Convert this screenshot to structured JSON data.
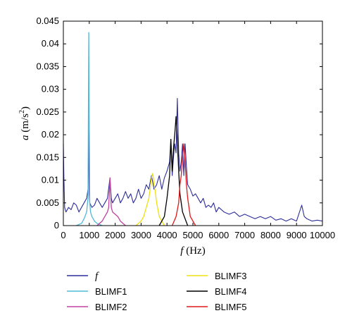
{
  "chart_data": {
    "type": "line",
    "xlabel_var": "f",
    "xlabel_unit": "(Hz)",
    "ylabel_var": "a",
    "ylabel_unit_pre": "(m/s",
    "ylabel_unit_sup": "2",
    "ylabel_unit_post": ")",
    "xlim": [
      0,
      10000
    ],
    "ylim": [
      0,
      0.045
    ],
    "x_ticks": [
      0,
      1000,
      2000,
      3000,
      4000,
      5000,
      6000,
      7000,
      8000,
      9000,
      10000
    ],
    "x_tick_labels": [
      "0",
      "1000",
      "2000",
      "3000",
      "4000",
      "5000",
      "6000",
      "7000",
      "8000",
      "9000",
      "10000"
    ],
    "y_ticks": [
      0,
      0.005,
      0.01,
      0.015,
      0.02,
      0.025,
      0.03,
      0.035,
      0.04,
      0.045
    ],
    "y_tick_labels": [
      "0",
      "0.005",
      "0.01",
      "0.015",
      "0.02",
      "0.025",
      "0.03",
      "0.035",
      "0.04",
      "0.045"
    ],
    "grid": false,
    "legend_placement": "below plot, two columns",
    "series": [
      {
        "name": "f",
        "color": "#2e2e9a",
        "x": [
          0,
          20,
          50,
          100,
          200,
          300,
          400,
          500,
          600,
          700,
          800,
          900,
          950,
          980,
          1000,
          1020,
          1100,
          1200,
          1300,
          1400,
          1500,
          1600,
          1700,
          1800,
          1850,
          1900,
          2000,
          2100,
          2200,
          2300,
          2400,
          2500,
          2600,
          2700,
          2800,
          2900,
          3000,
          3100,
          3200,
          3300,
          3400,
          3450,
          3500,
          3600,
          3700,
          3800,
          3900,
          4000,
          4100,
          4150,
          4200,
          4250,
          4300,
          4350,
          4400,
          4450,
          4500,
          4550,
          4600,
          4650,
          4700,
          4750,
          4800,
          4900,
          5000,
          5100,
          5200,
          5300,
          5400,
          5500,
          5600,
          5700,
          5800,
          5900,
          6000,
          6200,
          6400,
          6600,
          6800,
          7000,
          7200,
          7400,
          7600,
          7800,
          8000,
          8200,
          8400,
          8600,
          8800,
          9000,
          9200,
          9300,
          9400,
          9600,
          9800,
          10000
        ],
        "y": [
          0.018,
          0.011,
          0.004,
          0.003,
          0.004,
          0.0035,
          0.005,
          0.0045,
          0.003,
          0.004,
          0.005,
          0.006,
          0.008,
          0.021,
          0.007,
          0.005,
          0.004,
          0.0045,
          0.006,
          0.005,
          0.004,
          0.005,
          0.006,
          0.0105,
          0.006,
          0.005,
          0.006,
          0.007,
          0.005,
          0.006,
          0.0075,
          0.006,
          0.007,
          0.005,
          0.006,
          0.008,
          0.006,
          0.007,
          0.009,
          0.008,
          0.011,
          0.0095,
          0.008,
          0.009,
          0.011,
          0.008,
          0.0105,
          0.012,
          0.014,
          0.019,
          0.011,
          0.015,
          0.018,
          0.016,
          0.028,
          0.016,
          0.012,
          0.014,
          0.018,
          0.011,
          0.018,
          0.013,
          0.009,
          0.008,
          0.0065,
          0.007,
          0.006,
          0.005,
          0.006,
          0.004,
          0.0045,
          0.004,
          0.005,
          0.003,
          0.004,
          0.003,
          0.0025,
          0.003,
          0.002,
          0.0025,
          0.002,
          0.0015,
          0.002,
          0.0015,
          0.002,
          0.0012,
          0.0015,
          0.001,
          0.0015,
          0.001,
          0.0045,
          0.002,
          0.0015,
          0.001,
          0.0012,
          0.001
        ]
      },
      {
        "name": "BLIMF1",
        "color": "#4fb8d8",
        "x": [
          500,
          700,
          800,
          900,
          950,
          980,
          1000,
          1020,
          1050,
          1100,
          1200,
          1300,
          1500
        ],
        "y": [
          0,
          0.0005,
          0.0015,
          0.003,
          0.006,
          0.0425,
          0.021,
          0.005,
          0.003,
          0.002,
          0.001,
          0.0005,
          0
        ]
      },
      {
        "name": "BLIMF2",
        "color": "#c040a0",
        "x": [
          1300,
          1500,
          1600,
          1700,
          1750,
          1800,
          1850,
          1900,
          2000,
          2100,
          2200,
          2400
        ],
        "y": [
          0,
          0.001,
          0.002,
          0.003,
          0.004,
          0.0105,
          0.004,
          0.003,
          0.0025,
          0.002,
          0.001,
          0
        ]
      },
      {
        "name": "BLIMF3",
        "color": "#f0e010",
        "x": [
          2800,
          3000,
          3100,
          3200,
          3300,
          3350,
          3400,
          3450,
          3500,
          3550,
          3600,
          3700,
          3900
        ],
        "y": [
          0,
          0.001,
          0.002,
          0.004,
          0.006,
          0.008,
          0.0105,
          0.0115,
          0.009,
          0.0075,
          0.005,
          0.002,
          0
        ]
      },
      {
        "name": "BLIMF4",
        "color": "#000000",
        "x": [
          3700,
          3900,
          4000,
          4100,
          4150,
          4200,
          4250,
          4300,
          4350,
          4400,
          4450,
          4500,
          4600,
          4800
        ],
        "y": [
          0,
          0.002,
          0.006,
          0.011,
          0.019,
          0.012,
          0.017,
          0.02,
          0.024,
          0.019,
          0.012,
          0.007,
          0.003,
          0
        ]
      },
      {
        "name": "BLIMF5",
        "color": "#e01818",
        "x": [
          4200,
          4350,
          4450,
          4500,
          4550,
          4600,
          4650,
          4700,
          4750,
          4800,
          4900,
          5100
        ],
        "y": [
          0,
          0.002,
          0.005,
          0.009,
          0.011,
          0.015,
          0.018,
          0.014,
          0.009,
          0.006,
          0.002,
          0
        ]
      }
    ]
  }
}
